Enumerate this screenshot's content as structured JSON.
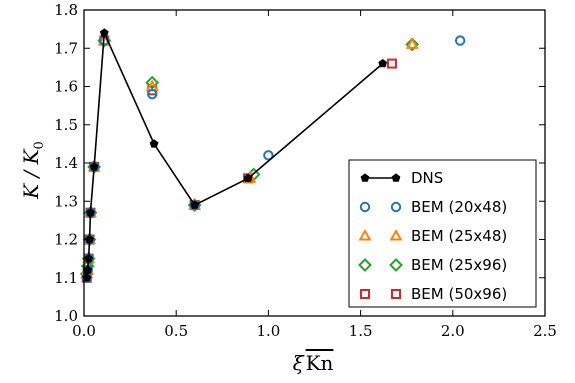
{
  "chart_data": {
    "type": "scatter",
    "xlabel": "ξ Kn",
    "ylabel": "K / K0",
    "xlim": [
      0.0,
      2.5
    ],
    "ylim": [
      1.0,
      1.8
    ],
    "xticks": [
      0.0,
      0.5,
      1.0,
      1.5,
      2.0,
      2.5
    ],
    "xtick_labels": [
      "0.0",
      "0.5",
      "1.0",
      "1.5",
      "2.0",
      "2.5"
    ],
    "yticks": [
      1.0,
      1.1,
      1.2,
      1.3,
      1.4,
      1.5,
      1.6,
      1.7,
      1.8
    ],
    "ytick_labels": [
      "1.0",
      "1.1",
      "1.2",
      "1.3",
      "1.4",
      "1.5",
      "1.6",
      "1.7",
      "1.8"
    ],
    "grid": false,
    "legend_position": "lower-right",
    "series": [
      {
        "name": "DNS",
        "style": "line-marker",
        "marker": "pentagon",
        "color": "#000000",
        "points": [
          [
            0.015,
            1.1
          ],
          [
            0.02,
            1.12
          ],
          [
            0.025,
            1.15
          ],
          [
            0.03,
            1.2
          ],
          [
            0.035,
            1.27
          ],
          [
            0.055,
            1.39
          ],
          [
            0.11,
            1.74
          ],
          [
            0.38,
            1.45
          ],
          [
            0.6,
            1.29
          ],
          [
            0.89,
            1.36
          ],
          [
            1.62,
            1.66
          ]
        ]
      },
      {
        "name": "BEM (20x48)",
        "marker": "circle",
        "color": "#1f77b4",
        "points": [
          [
            0.015,
            1.1
          ],
          [
            0.02,
            1.12
          ],
          [
            0.025,
            1.15
          ],
          [
            0.03,
            1.2
          ],
          [
            0.035,
            1.27
          ],
          [
            0.055,
            1.39
          ],
          [
            0.11,
            1.72
          ],
          [
            0.37,
            1.58
          ],
          [
            0.6,
            1.29
          ],
          [
            1.0,
            1.42
          ],
          [
            2.04,
            1.72
          ]
        ]
      },
      {
        "name": "BEM (25x48)",
        "marker": "triangle",
        "color": "#ff7f0e",
        "points": [
          [
            0.015,
            1.11
          ],
          [
            0.02,
            1.12
          ],
          [
            0.025,
            1.15
          ],
          [
            0.03,
            1.2
          ],
          [
            0.035,
            1.27
          ],
          [
            0.055,
            1.39
          ],
          [
            0.11,
            1.72
          ],
          [
            0.37,
            1.6
          ],
          [
            0.6,
            1.29
          ],
          [
            0.9,
            1.36
          ],
          [
            1.78,
            1.71
          ]
        ]
      },
      {
        "name": "BEM (25x96)",
        "marker": "diamond",
        "color": "#2ca02c",
        "points": [
          [
            0.015,
            1.11
          ],
          [
            0.02,
            1.13
          ],
          [
            0.025,
            1.15
          ],
          [
            0.03,
            1.2
          ],
          [
            0.035,
            1.27
          ],
          [
            0.055,
            1.39
          ],
          [
            0.11,
            1.72
          ],
          [
            0.37,
            1.61
          ],
          [
            0.6,
            1.29
          ],
          [
            0.92,
            1.37
          ],
          [
            1.78,
            1.71
          ]
        ]
      },
      {
        "name": "BEM (50x96)",
        "marker": "square",
        "color": "#d62728",
        "points": [
          [
            0.015,
            1.1
          ],
          [
            0.02,
            1.12
          ],
          [
            0.025,
            1.15
          ],
          [
            0.03,
            1.2
          ],
          [
            0.035,
            1.27
          ],
          [
            0.055,
            1.39
          ],
          [
            0.11,
            1.72
          ],
          [
            0.37,
            1.59
          ],
          [
            0.6,
            1.29
          ],
          [
            0.89,
            1.36
          ],
          [
            1.67,
            1.66
          ]
        ]
      }
    ]
  }
}
